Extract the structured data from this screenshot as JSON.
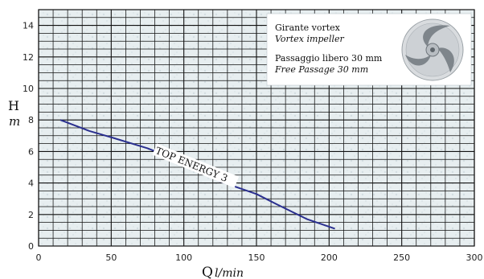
{
  "chart_data": {
    "type": "line",
    "x_ticks": [
      "0",
      "50",
      "100",
      "150",
      "200",
      "250",
      "300"
    ],
    "y_ticks": [
      "0",
      "2",
      "4",
      "6",
      "8",
      "10",
      "12",
      "14"
    ],
    "xlim": [
      0,
      300
    ],
    "ylim": [
      0,
      15
    ],
    "grid": true,
    "xlabel_main": "Q",
    "xlabel_unit": "l/min",
    "ylabel_main": "H",
    "ylabel_unit": "m",
    "series": [
      {
        "name": "TOP ENERGY 3",
        "color": "#2a2f8f",
        "x": [
          15,
          35,
          50,
          75,
          100,
          125,
          150,
          165,
          185,
          204
        ],
        "y": [
          8.0,
          7.3,
          6.9,
          6.2,
          5.3,
          4.1,
          3.3,
          2.6,
          1.7,
          1.1
        ]
      }
    ],
    "legend": {
      "placement": "top-right",
      "lines": [
        {
          "text": "Girante vortex",
          "italic": false
        },
        {
          "text": "Vortex impeller",
          "italic": true
        },
        {
          "text": "Passaggio libero 30 mm",
          "italic": false
        },
        {
          "text": "Free Passage 30 mm",
          "italic": true
        }
      ],
      "image_icon": "vortex-impeller-icon"
    }
  }
}
